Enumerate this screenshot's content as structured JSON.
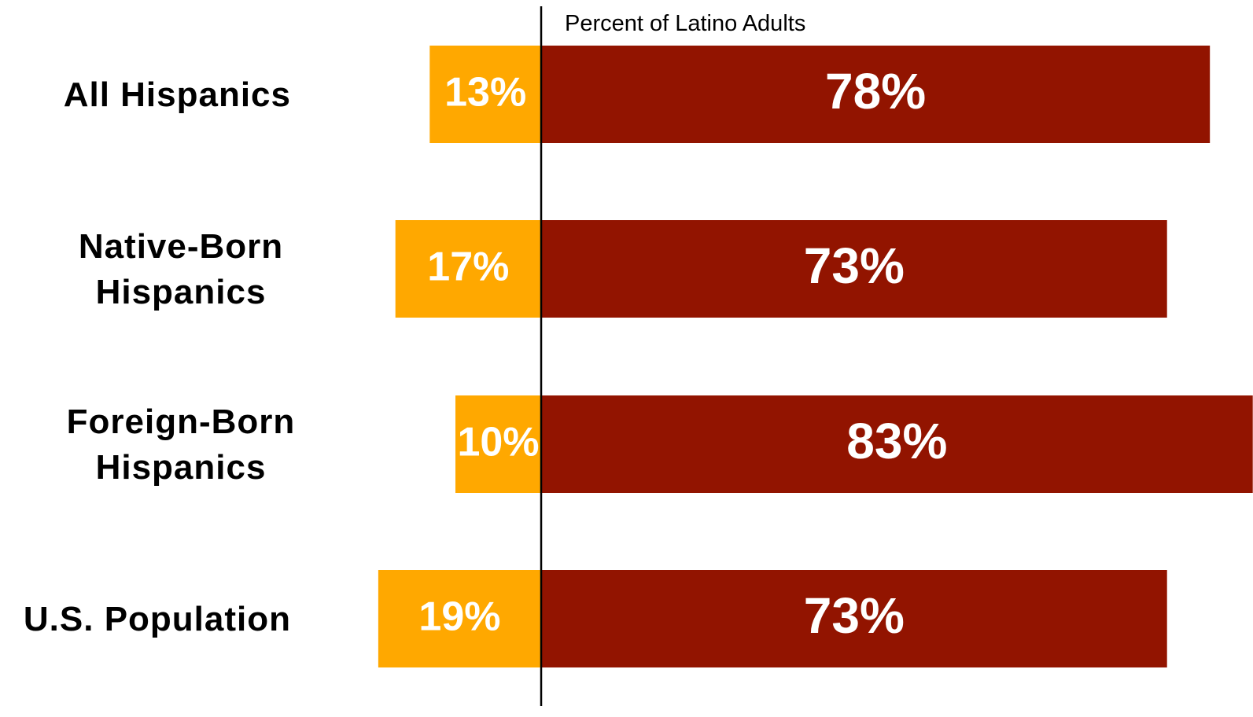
{
  "chart_data": {
    "type": "bar",
    "orientation": "horizontal-diverging",
    "axis_title": "Percent of Latino Adults",
    "categories": [
      [
        "All Hispanics"
      ],
      [
        "Native-Born",
        "Hispanics"
      ],
      [
        "Foreign-Born",
        "Hispanics"
      ],
      [
        "U.S. Population"
      ]
    ],
    "series": [
      {
        "values": [
          13,
          17,
          10,
          19
        ],
        "labels": [
          "13%",
          "17%",
          "10%",
          "19%"
        ],
        "color": "#FFA800",
        "side": "left"
      },
      {
        "values": [
          78,
          73,
          83,
          73
        ],
        "labels": [
          "78%",
          "73%",
          "83%",
          "73%"
        ],
        "color": "#921400",
        "side": "right"
      }
    ],
    "grid": false,
    "legend": "none"
  }
}
